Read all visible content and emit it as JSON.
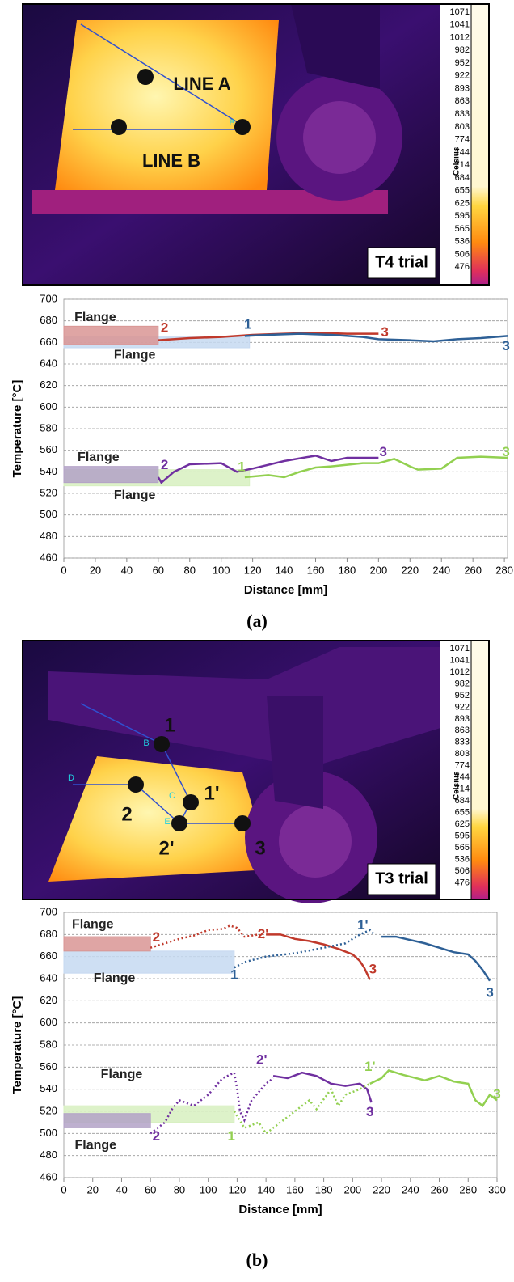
{
  "thermal_images": [
    {
      "labels": [
        "LINE A",
        "LINE B",
        "B"
      ],
      "trial": "T4 trial",
      "scale_title": "Celsius",
      "scale": [
        1071,
        1041,
        1012,
        982,
        952,
        922,
        893,
        863,
        833,
        803,
        774,
        744,
        714,
        684,
        655,
        625,
        595,
        565,
        536,
        506,
        476
      ]
    },
    {
      "labels": [
        "1",
        "2",
        "1'",
        "2'",
        "3",
        "B",
        "C",
        "D",
        "E"
      ],
      "trial": "T3 trial",
      "scale_title": "Celsius",
      "scale": [
        1071,
        1041,
        1012,
        982,
        952,
        922,
        893,
        863,
        833,
        803,
        774,
        744,
        714,
        684,
        655,
        625,
        595,
        565,
        536,
        506,
        476
      ]
    }
  ],
  "panel_labels": [
    "(a)",
    "(b)"
  ],
  "chart_data": [
    {
      "type": "line",
      "x_label": "Distance [mm]",
      "y_label": "Temperature [°C]",
      "xlim": [
        0,
        282
      ],
      "xticks": [
        0,
        20,
        40,
        60,
        80,
        100,
        120,
        140,
        160,
        180,
        200,
        220,
        240,
        260,
        280
      ],
      "ylim": [
        460,
        700
      ],
      "yticks": [
        460,
        480,
        500,
        520,
        540,
        560,
        580,
        600,
        620,
        640,
        660,
        680,
        700
      ],
      "grid": true,
      "bands": [
        {
          "x": [
            0,
            118
          ],
          "y": [
            655,
            665
          ],
          "color": "#c6d9f1"
        },
        {
          "x": [
            0,
            60
          ],
          "y": [
            658,
            675
          ],
          "color": "#d99594"
        },
        {
          "x": [
            0,
            118
          ],
          "y": [
            527,
            542
          ],
          "color": "#d7f0c0"
        },
        {
          "x": [
            0,
            60
          ],
          "y": [
            530,
            545
          ],
          "color": "#b3a2c7"
        }
      ],
      "series": [
        {
          "color": "#c0392b",
          "dashed": false,
          "x": [
            60,
            80,
            100,
            120,
            140,
            160,
            180,
            200
          ],
          "values": [
            662,
            664,
            665,
            667,
            668,
            669,
            668,
            668
          ]
        },
        {
          "color": "#2e6096",
          "dashed": false,
          "x": [
            115,
            130,
            150,
            170,
            190,
            200,
            220,
            235,
            250,
            265,
            282
          ],
          "values": [
            666,
            667,
            668,
            667,
            665,
            663,
            662,
            661,
            663,
            664,
            666
          ]
        },
        {
          "color": "#7030a0",
          "dashed": false,
          "x": [
            60,
            62,
            70,
            80,
            100,
            110,
            120,
            140,
            160,
            170,
            180,
            200
          ],
          "values": [
            535,
            530,
            540,
            547,
            548,
            540,
            543,
            550,
            555,
            550,
            553,
            553
          ]
        },
        {
          "color": "#92d050",
          "dashed": false,
          "x": [
            115,
            130,
            140,
            150,
            160,
            170,
            190,
            200,
            210,
            220,
            225,
            240,
            250,
            265,
            282
          ],
          "values": [
            535,
            537,
            535,
            540,
            544,
            545,
            548,
            548,
            552,
            545,
            542,
            543,
            553,
            554,
            553
          ]
        }
      ],
      "annotations": [
        {
          "text": "Flange",
          "color": "#222222"
        },
        {
          "text": "2",
          "color": "#c0392b"
        },
        {
          "text": "1",
          "color": "#2e6096"
        },
        {
          "text": "3",
          "color": "#c0392b"
        },
        {
          "text": "Flange",
          "color": "#222222"
        },
        {
          "text": "3",
          "color": "#2e6096"
        },
        {
          "text": "Flange",
          "color": "#222222"
        },
        {
          "text": "2",
          "color": "#7030a0"
        },
        {
          "text": "1",
          "color": "#92d050"
        },
        {
          "text": "3",
          "color": "#7030a0"
        },
        {
          "text": "3",
          "color": "#92d050"
        },
        {
          "text": "Flange",
          "color": "#222222"
        }
      ]
    },
    {
      "type": "line",
      "x_label": "Distance [mm]",
      "y_label": "Temperature [°C]",
      "xlim": [
        0,
        300
      ],
      "xticks": [
        0,
        20,
        40,
        60,
        80,
        100,
        120,
        140,
        160,
        180,
        200,
        220,
        240,
        260,
        280,
        300
      ],
      "ylim": [
        460,
        700
      ],
      "yticks": [
        460,
        480,
        500,
        520,
        540,
        560,
        580,
        600,
        620,
        640,
        660,
        680,
        700
      ],
      "grid": true,
      "bands": [
        {
          "x": [
            0,
            118
          ],
          "y": [
            645,
            665
          ],
          "color": "#c6d9f1"
        },
        {
          "x": [
            0,
            60
          ],
          "y": [
            665,
            678
          ],
          "color": "#d99594"
        },
        {
          "x": [
            0,
            118
          ],
          "y": [
            510,
            525
          ],
          "color": "#d7f0c0"
        },
        {
          "x": [
            0,
            60
          ],
          "y": [
            505,
            518
          ],
          "color": "#b3a2c7"
        }
      ],
      "series": [
        {
          "color": "#c0392b",
          "dashed": true,
          "x": [
            60,
            70,
            80,
            90,
            100,
            110,
            115,
            120,
            125,
            135,
            140
          ],
          "values": [
            668,
            672,
            676,
            679,
            684,
            685,
            688,
            686,
            678,
            680,
            676
          ]
        },
        {
          "color": "#c0392b",
          "dashed": false,
          "x": [
            140,
            150,
            160,
            170,
            180,
            190,
            200,
            205,
            208,
            212
          ],
          "values": [
            680,
            680,
            676,
            674,
            671,
            667,
            662,
            656,
            650,
            639
          ]
        },
        {
          "color": "#2e6096",
          "dashed": true,
          "x": [
            118,
            125,
            140,
            160,
            180,
            195,
            205,
            212,
            215
          ],
          "values": [
            650,
            655,
            660,
            663,
            668,
            672,
            680,
            684,
            680
          ]
        },
        {
          "color": "#2e6096",
          "dashed": false,
          "x": [
            220,
            230,
            240,
            250,
            260,
            270,
            280,
            285,
            290,
            295
          ],
          "values": [
            678,
            678,
            675,
            672,
            668,
            664,
            662,
            656,
            648,
            638
          ]
        },
        {
          "color": "#7030a0",
          "dashed": true,
          "x": [
            60,
            65,
            70,
            75,
            80,
            90,
            100,
            110,
            118,
            120,
            122,
            125,
            130,
            140,
            145
          ],
          "values": [
            500,
            505,
            510,
            522,
            530,
            525,
            535,
            550,
            555,
            540,
            520,
            512,
            530,
            545,
            550
          ]
        },
        {
          "color": "#7030a0",
          "dashed": false,
          "x": [
            145,
            155,
            165,
            175,
            185,
            195,
            205,
            210,
            213
          ],
          "values": [
            552,
            550,
            555,
            552,
            545,
            543,
            545,
            540,
            528
          ]
        },
        {
          "color": "#92d050",
          "dashed": true,
          "x": [
            118,
            125,
            135,
            140,
            150,
            160,
            170,
            175,
            185,
            190,
            195,
            205,
            212
          ],
          "values": [
            520,
            505,
            510,
            500,
            510,
            520,
            530,
            522,
            540,
            525,
            535,
            540,
            545
          ]
        },
        {
          "color": "#92d050",
          "dashed": false,
          "x": [
            212,
            220,
            225,
            235,
            250,
            260,
            270,
            280,
            285,
            290,
            295,
            300
          ],
          "values": [
            545,
            550,
            557,
            553,
            548,
            552,
            547,
            545,
            530,
            525,
            535,
            530
          ]
        }
      ],
      "annotations": [
        {
          "text": "Flange",
          "color": "#222222"
        },
        {
          "text": "2",
          "color": "#c0392b"
        },
        {
          "text": "2'",
          "color": "#c0392b"
        },
        {
          "text": "3",
          "color": "#c0392b"
        },
        {
          "text": "1'",
          "color": "#2e6096"
        },
        {
          "text": "1",
          "color": "#2e6096"
        },
        {
          "text": "3",
          "color": "#2e6096"
        },
        {
          "text": "Flange",
          "color": "#222222"
        },
        {
          "text": "Flange",
          "color": "#222222"
        },
        {
          "text": "2'",
          "color": "#7030a0"
        },
        {
          "text": "3",
          "color": "#7030a0"
        },
        {
          "text": "2",
          "color": "#7030a0"
        },
        {
          "text": "1",
          "color": "#92d050"
        },
        {
          "text": "1'",
          "color": "#92d050"
        },
        {
          "text": "3",
          "color": "#92d050"
        },
        {
          "text": "Flange",
          "color": "#222222"
        }
      ]
    }
  ]
}
